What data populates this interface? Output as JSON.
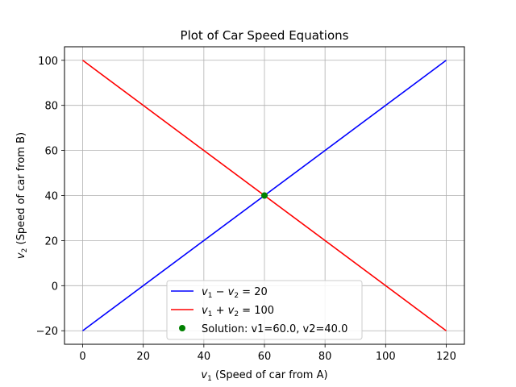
{
  "chart_data": {
    "type": "line",
    "title": "Plot of Car Speed Equations",
    "xlabel": {
      "var": "v",
      "sub": "1",
      "text": " (Speed of car from A)"
    },
    "ylabel": {
      "var": "v",
      "sub": "2",
      "text": " (Speed of car from B)"
    },
    "xlim": [
      -6,
      126
    ],
    "ylim": [
      -26,
      106
    ],
    "xticks": [
      0,
      20,
      40,
      60,
      80,
      100,
      120
    ],
    "yticks": [
      -20,
      0,
      20,
      40,
      60,
      80,
      100
    ],
    "grid": true,
    "legend_position": "bottom-center",
    "series": [
      {
        "name": "v1 − v2 = 20",
        "label_parts": [
          [
            "v",
            "1"
          ],
          " − ",
          [
            "v",
            "2"
          ],
          " = 20"
        ],
        "color": "#0000ff",
        "x": [
          0,
          120
        ],
        "y": [
          -20,
          100
        ]
      },
      {
        "name": "v1 + v2 = 100",
        "label_parts": [
          [
            "v",
            "1"
          ],
          " + ",
          [
            "v",
            "2"
          ],
          " = 100"
        ],
        "color": "#ff0000",
        "x": [
          0,
          120
        ],
        "y": [
          100,
          -20
        ]
      }
    ],
    "points": [
      {
        "name": "Solution: v1=60.0, v2=40.0",
        "color": "#008000",
        "x": 60,
        "y": 40
      }
    ]
  }
}
